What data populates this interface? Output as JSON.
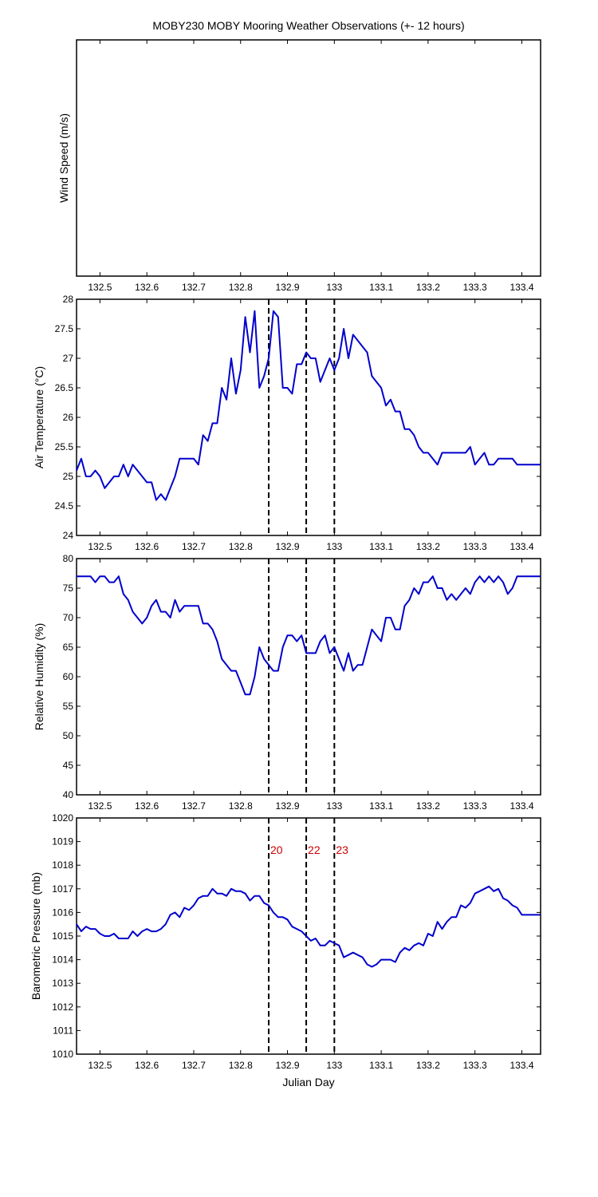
{
  "figure": {
    "title": "MOBY230 MOBY Mooring Weather Observations (+- 12 hours)",
    "xlabel": "Julian Day",
    "line_color": "#0000cc",
    "marker_color": "#cc0000"
  },
  "chart_data": [
    {
      "type": "line",
      "ylabel": "Wind Speed (m/s)",
      "xlim": [
        132.45,
        133.44
      ],
      "x_ticks": [
        132.5,
        132.6,
        132.7,
        132.8,
        132.9,
        133,
        133.1,
        133.2,
        133.3,
        133.4
      ],
      "x_tick_labels": [
        "132.5",
        "132.6",
        "132.7",
        "132.8",
        "132.9",
        "133",
        "133.1",
        "133.2",
        "133.3",
        "133.4"
      ],
      "y_ticks": [],
      "y_tick_labels": [],
      "vlines": [],
      "series": [
        {
          "x": [],
          "y": []
        }
      ]
    },
    {
      "type": "line",
      "ylabel": "Air Temperature (°C)",
      "xlim": [
        132.45,
        133.44
      ],
      "ylim": [
        24,
        28
      ],
      "x_ticks": [
        132.5,
        132.6,
        132.7,
        132.8,
        132.9,
        133,
        133.1,
        133.2,
        133.3,
        133.4
      ],
      "x_tick_labels": [
        "132.5",
        "132.6",
        "132.7",
        "132.8",
        "132.9",
        "133",
        "133.1",
        "133.2",
        "133.3",
        "133.4"
      ],
      "y_ticks": [
        24,
        24.5,
        25,
        25.5,
        26,
        26.5,
        27,
        27.5,
        28
      ],
      "y_tick_labels": [
        "24",
        "24.5",
        "25",
        "25.5",
        "26",
        "26.5",
        "27",
        "27.5",
        "28"
      ],
      "vlines": [
        132.86,
        132.94,
        133.0
      ],
      "series": [
        {
          "x": [
            132.45,
            132.46,
            132.47,
            132.48,
            132.49,
            132.5,
            132.51,
            132.52,
            132.53,
            132.54,
            132.55,
            132.56,
            132.57,
            132.58,
            132.59,
            132.6,
            132.61,
            132.62,
            132.63,
            132.64,
            132.65,
            132.66,
            132.67,
            132.68,
            132.69,
            132.7,
            132.71,
            132.72,
            132.73,
            132.74,
            132.75,
            132.76,
            132.77,
            132.78,
            132.79,
            132.8,
            132.81,
            132.82,
            132.83,
            132.84,
            132.85,
            132.86,
            132.87,
            132.88,
            132.89,
            132.9,
            132.91,
            132.92,
            132.93,
            132.94,
            132.95,
            132.96,
            132.97,
            132.98,
            132.99,
            133.0,
            133.01,
            133.02,
            133.03,
            133.04,
            133.05,
            133.06,
            133.07,
            133.08,
            133.09,
            133.1,
            133.11,
            133.12,
            133.13,
            133.14,
            133.15,
            133.16,
            133.17,
            133.18,
            133.19,
            133.2,
            133.21,
            133.22,
            133.23,
            133.24,
            133.25,
            133.26,
            133.27,
            133.28,
            133.29,
            133.3,
            133.31,
            133.32,
            133.33,
            133.34,
            133.35,
            133.36,
            133.37,
            133.38,
            133.39,
            133.4,
            133.41,
            133.42,
            133.43,
            133.44
          ],
          "y": [
            25.1,
            25.3,
            25.0,
            25.0,
            25.1,
            25.0,
            24.8,
            24.9,
            25.0,
            25.0,
            25.2,
            25.0,
            25.2,
            25.1,
            25.0,
            24.9,
            24.9,
            24.6,
            24.7,
            24.6,
            24.8,
            25.0,
            25.3,
            25.3,
            25.3,
            25.3,
            25.2,
            25.7,
            25.6,
            25.9,
            25.9,
            26.5,
            26.3,
            27.0,
            26.4,
            26.8,
            27.7,
            27.1,
            27.8,
            26.5,
            26.7,
            27.0,
            27.8,
            27.7,
            26.5,
            26.5,
            26.4,
            26.9,
            26.9,
            27.1,
            27.0,
            27.0,
            26.6,
            26.8,
            27.0,
            26.8,
            27.0,
            27.5,
            27.0,
            27.4,
            27.3,
            27.2,
            27.1,
            26.7,
            26.6,
            26.5,
            26.2,
            26.3,
            26.1,
            26.1,
            25.8,
            25.8,
            25.7,
            25.5,
            25.4,
            25.4,
            25.3,
            25.2,
            25.4,
            25.4,
            25.4,
            25.4,
            25.4,
            25.4,
            25.5,
            25.2,
            25.3,
            25.4,
            25.2,
            25.2,
            25.3,
            25.3,
            25.3,
            25.3,
            25.2,
            25.2,
            25.2,
            25.2,
            25.2,
            25.2
          ]
        }
      ]
    },
    {
      "type": "line",
      "ylabel": "Relative Humidity (%)",
      "xlim": [
        132.45,
        133.44
      ],
      "ylim": [
        40,
        80
      ],
      "x_ticks": [
        132.5,
        132.6,
        132.7,
        132.8,
        132.9,
        133,
        133.1,
        133.2,
        133.3,
        133.4
      ],
      "x_tick_labels": [
        "132.5",
        "132.6",
        "132.7",
        "132.8",
        "132.9",
        "133",
        "133.1",
        "133.2",
        "133.3",
        "133.4"
      ],
      "y_ticks": [
        40,
        45,
        50,
        55,
        60,
        65,
        70,
        75,
        80
      ],
      "y_tick_labels": [
        "40",
        "45",
        "50",
        "55",
        "60",
        "65",
        "70",
        "75",
        "80"
      ],
      "vlines": [
        132.86,
        132.94,
        133.0
      ],
      "series": [
        {
          "x": [
            132.45,
            132.46,
            132.47,
            132.48,
            132.49,
            132.5,
            132.51,
            132.52,
            132.53,
            132.54,
            132.55,
            132.56,
            132.57,
            132.58,
            132.59,
            132.6,
            132.61,
            132.62,
            132.63,
            132.64,
            132.65,
            132.66,
            132.67,
            132.68,
            132.69,
            132.7,
            132.71,
            132.72,
            132.73,
            132.74,
            132.75,
            132.76,
            132.77,
            132.78,
            132.79,
            132.8,
            132.81,
            132.82,
            132.83,
            132.84,
            132.85,
            132.86,
            132.87,
            132.88,
            132.89,
            132.9,
            132.91,
            132.92,
            132.93,
            132.94,
            132.95,
            132.96,
            132.97,
            132.98,
            132.99,
            133.0,
            133.01,
            133.02,
            133.03,
            133.04,
            133.05,
            133.06,
            133.07,
            133.08,
            133.09,
            133.1,
            133.11,
            133.12,
            133.13,
            133.14,
            133.15,
            133.16,
            133.17,
            133.18,
            133.19,
            133.2,
            133.21,
            133.22,
            133.23,
            133.24,
            133.25,
            133.26,
            133.27,
            133.28,
            133.29,
            133.3,
            133.31,
            133.32,
            133.33,
            133.34,
            133.35,
            133.36,
            133.37,
            133.38,
            133.39,
            133.4,
            133.41,
            133.42,
            133.43,
            133.44
          ],
          "y": [
            77,
            77,
            77,
            77,
            76,
            77,
            77,
            76,
            76,
            77,
            74,
            73,
            71,
            70,
            69,
            70,
            72,
            73,
            71,
            71,
            70,
            73,
            71,
            72,
            72,
            72,
            72,
            69,
            69,
            68,
            66,
            63,
            62,
            61,
            61,
            59,
            57,
            57,
            60,
            65,
            63,
            62,
            61,
            61,
            65,
            67,
            67,
            66,
            67,
            64,
            64,
            64,
            66,
            67,
            64,
            65,
            63,
            61,
            64,
            61,
            62,
            62,
            65,
            68,
            67,
            66,
            70,
            70,
            68,
            68,
            72,
            73,
            75,
            74,
            76,
            76,
            77,
            75,
            75,
            73,
            74,
            73,
            74,
            75,
            74,
            76,
            77,
            76,
            77,
            76,
            77,
            76,
            74,
            75,
            77,
            77,
            77,
            77,
            77,
            77
          ]
        }
      ]
    },
    {
      "type": "line",
      "ylabel": "Barometric Pressure (mb)",
      "xlim": [
        132.45,
        133.44
      ],
      "ylim": [
        1010,
        1020
      ],
      "x_ticks": [
        132.5,
        132.6,
        132.7,
        132.8,
        132.9,
        133,
        133.1,
        133.2,
        133.3,
        133.4
      ],
      "x_tick_labels": [
        "132.5",
        "132.6",
        "132.7",
        "132.8",
        "132.9",
        "133",
        "133.1",
        "133.2",
        "133.3",
        "133.4"
      ],
      "y_ticks": [
        1010,
        1011,
        1012,
        1013,
        1014,
        1015,
        1016,
        1017,
        1018,
        1019,
        1020
      ],
      "y_tick_labels": [
        "1010",
        "1011",
        "1012",
        "1013",
        "1014",
        "1015",
        "1016",
        "1017",
        "1018",
        "1019",
        "1020"
      ],
      "vlines": [
        132.86,
        132.94,
        133.0
      ],
      "vline_labels": [
        "20",
        "22",
        "23"
      ],
      "series": [
        {
          "x": [
            132.45,
            132.46,
            132.47,
            132.48,
            132.49,
            132.5,
            132.51,
            132.52,
            132.53,
            132.54,
            132.55,
            132.56,
            132.57,
            132.58,
            132.59,
            132.6,
            132.61,
            132.62,
            132.63,
            132.64,
            132.65,
            132.66,
            132.67,
            132.68,
            132.69,
            132.7,
            132.71,
            132.72,
            132.73,
            132.74,
            132.75,
            132.76,
            132.77,
            132.78,
            132.79,
            132.8,
            132.81,
            132.82,
            132.83,
            132.84,
            132.85,
            132.86,
            132.87,
            132.88,
            132.89,
            132.9,
            132.91,
            132.92,
            132.93,
            132.94,
            132.95,
            132.96,
            132.97,
            132.98,
            132.99,
            133.0,
            133.01,
            133.02,
            133.03,
            133.04,
            133.05,
            133.06,
            133.07,
            133.08,
            133.09,
            133.1,
            133.11,
            133.12,
            133.13,
            133.14,
            133.15,
            133.16,
            133.17,
            133.18,
            133.19,
            133.2,
            133.21,
            133.22,
            133.23,
            133.24,
            133.25,
            133.26,
            133.27,
            133.28,
            133.29,
            133.3,
            133.31,
            133.32,
            133.33,
            133.34,
            133.35,
            133.36,
            133.37,
            133.38,
            133.39,
            133.4,
            133.41,
            133.42,
            133.43,
            133.44
          ],
          "y": [
            1015.5,
            1015.2,
            1015.4,
            1015.3,
            1015.3,
            1015.1,
            1015.0,
            1015.0,
            1015.1,
            1014.9,
            1014.9,
            1014.9,
            1015.2,
            1015.0,
            1015.2,
            1015.3,
            1015.2,
            1015.2,
            1015.3,
            1015.5,
            1015.9,
            1016.0,
            1015.8,
            1016.2,
            1016.1,
            1016.3,
            1016.6,
            1016.7,
            1016.7,
            1017.0,
            1016.8,
            1016.8,
            1016.7,
            1017.0,
            1016.9,
            1016.9,
            1016.8,
            1016.5,
            1016.7,
            1016.7,
            1016.4,
            1016.3,
            1016.0,
            1015.8,
            1015.8,
            1015.7,
            1015.4,
            1015.3,
            1015.2,
            1015.0,
            1014.8,
            1014.9,
            1014.6,
            1014.6,
            1014.8,
            1014.7,
            1014.6,
            1014.1,
            1014.2,
            1014.3,
            1014.2,
            1014.1,
            1013.8,
            1013.7,
            1013.8,
            1014.0,
            1014.0,
            1014.0,
            1013.9,
            1014.3,
            1014.5,
            1014.4,
            1014.6,
            1014.7,
            1014.6,
            1015.1,
            1015.0,
            1015.6,
            1015.3,
            1015.6,
            1015.8,
            1015.8,
            1016.3,
            1016.2,
            1016.4,
            1016.8,
            1016.9,
            1017.0,
            1017.1,
            1016.9,
            1017.0,
            1016.6,
            1016.5,
            1016.3,
            1016.2,
            1015.9,
            1015.9,
            1015.9,
            1015.9,
            1015.9
          ]
        }
      ]
    }
  ]
}
